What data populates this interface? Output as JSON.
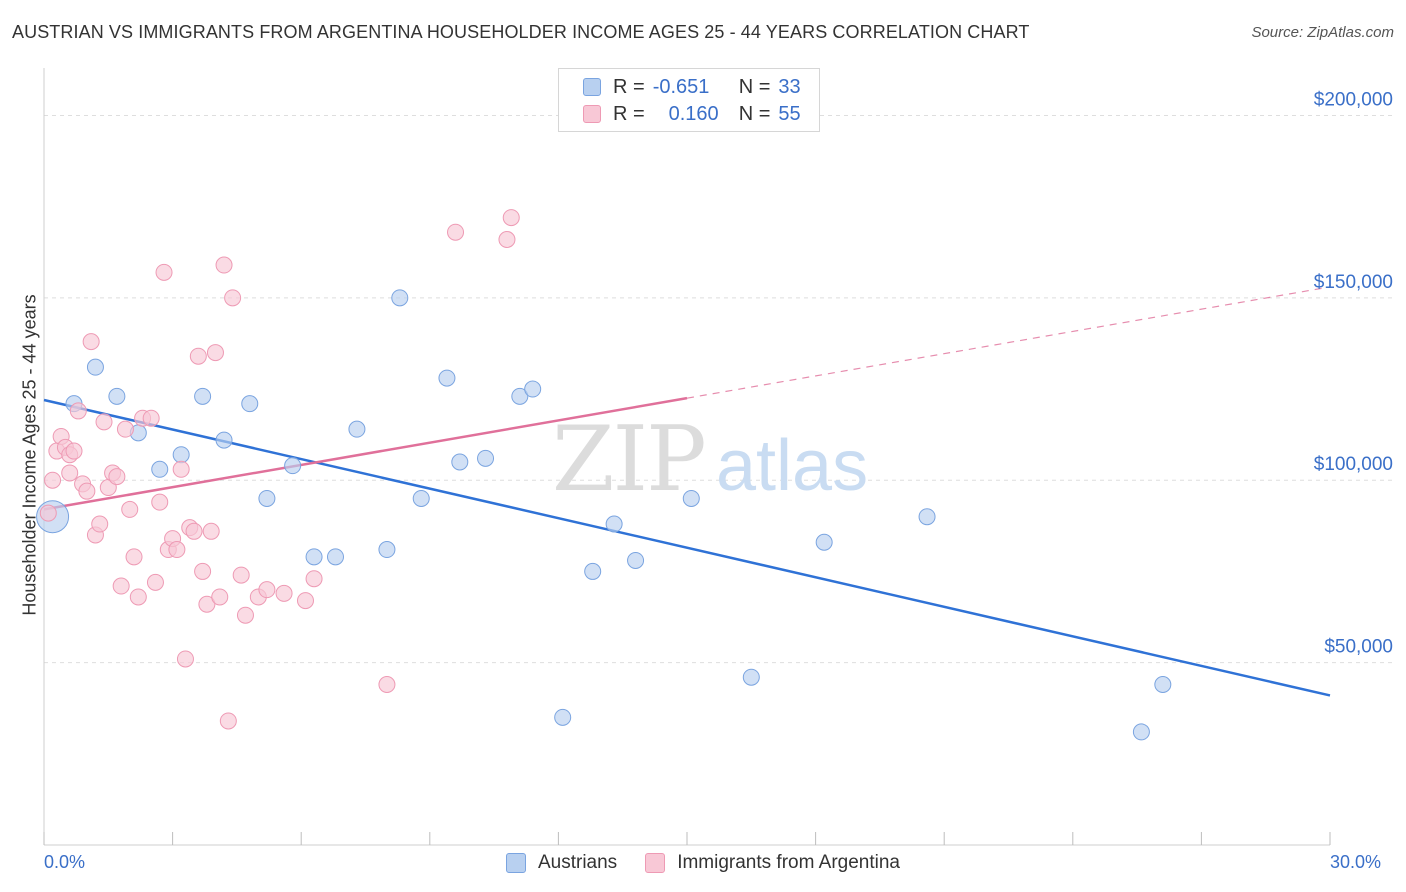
{
  "title": "AUSTRIAN VS IMMIGRANTS FROM ARGENTINA HOUSEHOLDER INCOME AGES 25 - 44 YEARS CORRELATION CHART",
  "source": "Source: ZipAtlas.com",
  "watermark": {
    "zip": "ZIP",
    "atlas": "atlas"
  },
  "legend_top": {
    "rows": [
      {
        "r_label": "R =",
        "r_value": "-0.651",
        "n_label": "N =",
        "n_value": "33"
      },
      {
        "r_label": "R =",
        "r_value": "0.160",
        "n_label": "N =",
        "n_value": "55"
      }
    ]
  },
  "colors": {
    "blue_fill": "#b8d0f0",
    "blue_stroke": "#7aa4e0",
    "blue_line": "#2f72d6",
    "pink_fill": "#f8c8d6",
    "pink_stroke": "#ee9ab4",
    "pink_line": "#e0709a",
    "tick_text": "#3a6fc8",
    "grid": "#dedede"
  },
  "chart_data": {
    "type": "scatter",
    "title": "AUSTRIAN VS IMMIGRANTS FROM ARGENTINA HOUSEHOLDER INCOME AGES 25 - 44 YEARS CORRELATION CHART",
    "xlabel": "",
    "ylabel": "Householder Income Ages 25 - 44 years",
    "xlim": [
      0,
      30
    ],
    "ylim": [
      0,
      210000
    ],
    "x_tick_labels": [
      "0.0%",
      "30.0%"
    ],
    "y_ticks": [
      50000,
      100000,
      150000,
      200000
    ],
    "y_tick_labels": [
      "$50,000",
      "$100,000",
      "$150,000",
      "$200,000"
    ],
    "legend_position": "top-center",
    "series": [
      {
        "name": "Austrians",
        "r": -0.651,
        "n": 33,
        "trend": {
          "x": [
            0,
            30
          ],
          "y": [
            122000,
            41000
          ],
          "dashed_after": null
        },
        "points": [
          {
            "x": 0.2,
            "y": 90000,
            "big": true
          },
          {
            "x": 0.7,
            "y": 121000
          },
          {
            "x": 1.2,
            "y": 131000
          },
          {
            "x": 1.7,
            "y": 123000
          },
          {
            "x": 2.2,
            "y": 113000
          },
          {
            "x": 2.7,
            "y": 103000
          },
          {
            "x": 3.2,
            "y": 107000
          },
          {
            "x": 3.7,
            "y": 123000
          },
          {
            "x": 4.2,
            "y": 111000
          },
          {
            "x": 4.8,
            "y": 121000
          },
          {
            "x": 5.2,
            "y": 95000
          },
          {
            "x": 5.8,
            "y": 104000
          },
          {
            "x": 6.3,
            "y": 79000
          },
          {
            "x": 6.8,
            "y": 79000
          },
          {
            "x": 7.3,
            "y": 114000
          },
          {
            "x": 8.0,
            "y": 81000
          },
          {
            "x": 8.3,
            "y": 150000
          },
          {
            "x": 8.8,
            "y": 95000
          },
          {
            "x": 9.4,
            "y": 128000
          },
          {
            "x": 9.7,
            "y": 105000
          },
          {
            "x": 10.3,
            "y": 106000
          },
          {
            "x": 11.1,
            "y": 123000
          },
          {
            "x": 11.4,
            "y": 125000
          },
          {
            "x": 12.1,
            "y": 35000
          },
          {
            "x": 12.8,
            "y": 75000
          },
          {
            "x": 13.3,
            "y": 88000
          },
          {
            "x": 13.8,
            "y": 78000
          },
          {
            "x": 15.1,
            "y": 95000
          },
          {
            "x": 16.5,
            "y": 46000
          },
          {
            "x": 18.2,
            "y": 83000
          },
          {
            "x": 20.6,
            "y": 90000
          },
          {
            "x": 25.6,
            "y": 31000
          },
          {
            "x": 26.1,
            "y": 44000
          }
        ]
      },
      {
        "name": "Immigrants from Argentina",
        "r": 0.16,
        "n": 55,
        "trend": {
          "x": [
            0,
            30
          ],
          "y": [
            92000,
            153000
          ],
          "dashed_after": 15
        },
        "points": [
          {
            "x": 0.1,
            "y": 91000
          },
          {
            "x": 0.2,
            "y": 100000
          },
          {
            "x": 0.3,
            "y": 108000
          },
          {
            "x": 0.4,
            "y": 112000
          },
          {
            "x": 0.5,
            "y": 109000
          },
          {
            "x": 0.6,
            "y": 107000
          },
          {
            "x": 0.6,
            "y": 102000
          },
          {
            "x": 0.7,
            "y": 108000
          },
          {
            "x": 0.8,
            "y": 119000
          },
          {
            "x": 0.9,
            "y": 99000
          },
          {
            "x": 1.0,
            "y": 97000
          },
          {
            "x": 1.1,
            "y": 138000
          },
          {
            "x": 1.2,
            "y": 85000
          },
          {
            "x": 1.3,
            "y": 88000
          },
          {
            "x": 1.4,
            "y": 116000
          },
          {
            "x": 1.5,
            "y": 98000
          },
          {
            "x": 1.6,
            "y": 102000
          },
          {
            "x": 1.7,
            "y": 101000
          },
          {
            "x": 1.8,
            "y": 71000
          },
          {
            "x": 1.9,
            "y": 114000
          },
          {
            "x": 2.0,
            "y": 92000
          },
          {
            "x": 2.1,
            "y": 79000
          },
          {
            "x": 2.2,
            "y": 68000
          },
          {
            "x": 2.3,
            "y": 117000
          },
          {
            "x": 2.5,
            "y": 117000
          },
          {
            "x": 2.6,
            "y": 72000
          },
          {
            "x": 2.7,
            "y": 94000
          },
          {
            "x": 2.8,
            "y": 157000
          },
          {
            "x": 2.9,
            "y": 81000
          },
          {
            "x": 3.0,
            "y": 84000
          },
          {
            "x": 3.1,
            "y": 81000
          },
          {
            "x": 3.2,
            "y": 103000
          },
          {
            "x": 3.3,
            "y": 51000
          },
          {
            "x": 3.4,
            "y": 87000
          },
          {
            "x": 3.5,
            "y": 86000
          },
          {
            "x": 3.6,
            "y": 134000
          },
          {
            "x": 3.7,
            "y": 75000
          },
          {
            "x": 3.8,
            "y": 66000
          },
          {
            "x": 3.9,
            "y": 86000
          },
          {
            "x": 4.0,
            "y": 135000
          },
          {
            "x": 4.1,
            "y": 68000
          },
          {
            "x": 4.2,
            "y": 159000
          },
          {
            "x": 4.3,
            "y": 34000
          },
          {
            "x": 4.4,
            "y": 150000
          },
          {
            "x": 4.6,
            "y": 74000
          },
          {
            "x": 4.7,
            "y": 63000
          },
          {
            "x": 5.0,
            "y": 68000
          },
          {
            "x": 5.2,
            "y": 70000
          },
          {
            "x": 5.6,
            "y": 69000
          },
          {
            "x": 6.1,
            "y": 67000
          },
          {
            "x": 6.3,
            "y": 73000
          },
          {
            "x": 8.0,
            "y": 44000
          },
          {
            "x": 9.6,
            "y": 168000
          },
          {
            "x": 10.8,
            "y": 166000
          },
          {
            "x": 10.9,
            "y": 172000
          }
        ]
      }
    ]
  },
  "bottom_legend": [
    {
      "label": "Austrians"
    },
    {
      "label": "Immigrants from Argentina"
    }
  ]
}
